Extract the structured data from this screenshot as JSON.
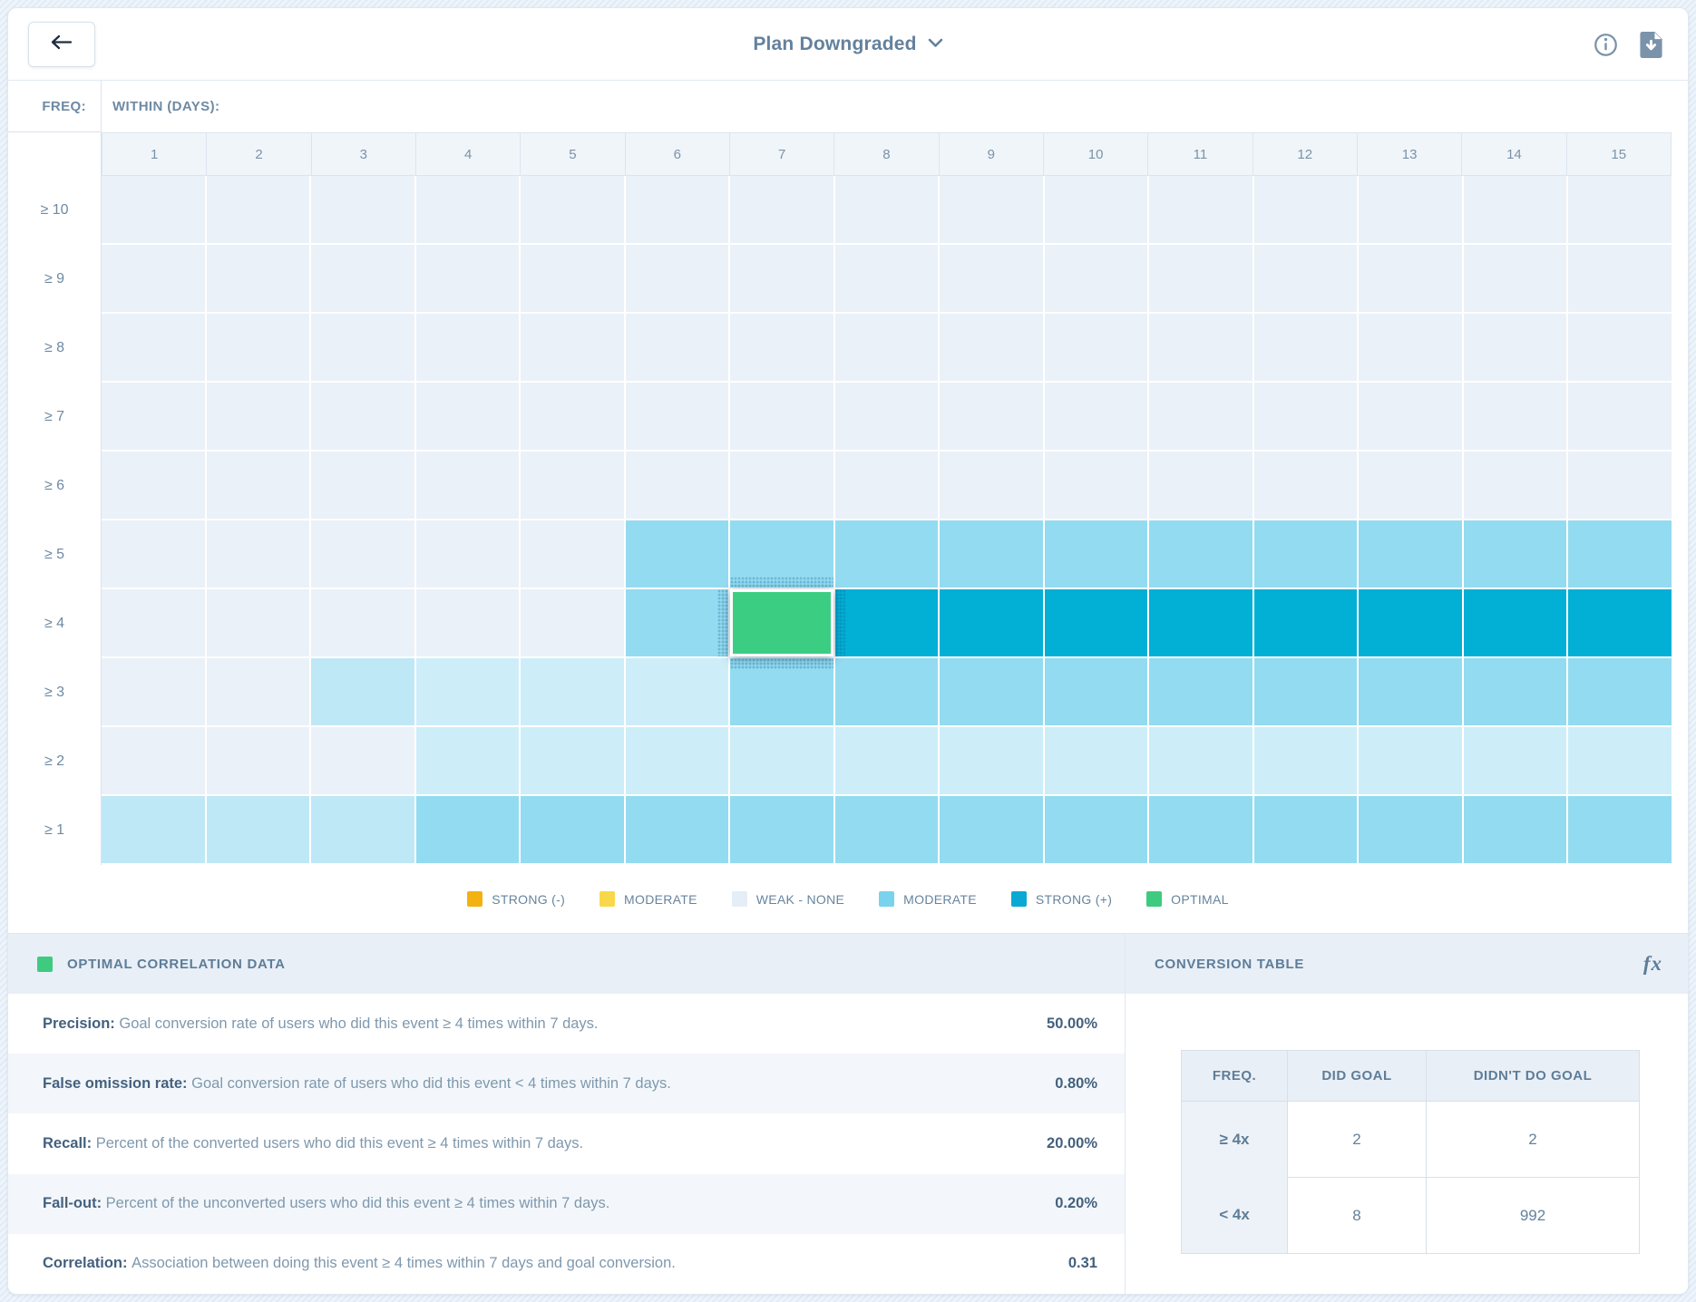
{
  "toolbar": {
    "title": "Plan Downgraded"
  },
  "axes": {
    "freq": "FREQ:",
    "within": "WITHIN (DAYS):"
  },
  "chart_data": {
    "type": "heatmap",
    "x_label": "WITHIN (DAYS):",
    "y_label": "FREQ:",
    "x_categories": [
      "1",
      "2",
      "3",
      "4",
      "5",
      "6",
      "7",
      "8",
      "9",
      "10",
      "11",
      "12",
      "13",
      "14",
      "15"
    ],
    "y_categories": [
      "≥ 10",
      "≥ 9",
      "≥ 8",
      "≥ 7",
      "≥ 6",
      "≥ 5",
      "≥ 4",
      "≥ 3",
      "≥ 2",
      "≥ 1"
    ],
    "levels": {
      "0": "weak-none",
      "1": "weak-light-cyan",
      "2": "weak-medium-cyan",
      "3": "moderate",
      "4": "strong-positive",
      "5": "optimal"
    },
    "palette": {
      "0": "#ebf1f8",
      "1": "#cdeef9",
      "2": "#bfe8f6",
      "3": "#93dbf0",
      "4": "#02afd5",
      "5": "#3bce83"
    },
    "cells": [
      [
        0,
        0,
        0,
        0,
        0,
        0,
        0,
        0,
        0,
        0,
        0,
        0,
        0,
        0,
        0
      ],
      [
        0,
        0,
        0,
        0,
        0,
        0,
        0,
        0,
        0,
        0,
        0,
        0,
        0,
        0,
        0
      ],
      [
        0,
        0,
        0,
        0,
        0,
        0,
        0,
        0,
        0,
        0,
        0,
        0,
        0,
        0,
        0
      ],
      [
        0,
        0,
        0,
        0,
        0,
        0,
        0,
        0,
        0,
        0,
        0,
        0,
        0,
        0,
        0
      ],
      [
        0,
        0,
        0,
        0,
        0,
        0,
        0,
        0,
        0,
        0,
        0,
        0,
        0,
        0,
        0
      ],
      [
        0,
        0,
        0,
        0,
        0,
        3,
        3,
        3,
        3,
        3,
        3,
        3,
        3,
        3,
        3
      ],
      [
        0,
        0,
        0,
        0,
        0,
        3,
        5,
        4,
        4,
        4,
        4,
        4,
        4,
        4,
        4
      ],
      [
        0,
        0,
        2,
        1,
        1,
        1,
        3,
        3,
        3,
        3,
        3,
        3,
        3,
        3,
        3
      ],
      [
        0,
        0,
        0,
        1,
        1,
        1,
        1,
        1,
        1,
        1,
        1,
        1,
        1,
        1,
        1
      ],
      [
        2,
        2,
        2,
        3,
        3,
        3,
        3,
        3,
        3,
        3,
        3,
        3,
        3,
        3,
        3
      ]
    ],
    "selected": {
      "row": "≥ 4",
      "col": "7",
      "row_index": 6,
      "col_index": 6
    }
  },
  "legend": {
    "items": [
      {
        "label": "STRONG (-)",
        "color": "#f2b211",
        "hatch": false
      },
      {
        "label": "MODERATE",
        "color": "#f8d84b",
        "hatch": false
      },
      {
        "label": "WEAK - NONE",
        "color": "#e5eef7",
        "hatch": false
      },
      {
        "label": "MODERATE",
        "color": "#79d3ec",
        "hatch": true
      },
      {
        "label": "STRONG (+)",
        "color": "#09a9d4",
        "hatch": false
      },
      {
        "label": "OPTIMAL",
        "color": "#3ecb80",
        "hatch": false
      }
    ]
  },
  "optimal_panel": {
    "title": "OPTIMAL CORRELATION DATA",
    "accent_color": "#3ecb80",
    "rows": [
      {
        "label": "Precision:",
        "desc": "Goal conversion rate of users who did this event ≥ 4 times within 7 days.",
        "value": "50.00%"
      },
      {
        "label": "False omission rate:",
        "desc": "Goal conversion rate of users who did this event < 4 times within 7 days.",
        "value": "0.80%"
      },
      {
        "label": "Recall:",
        "desc": "Percent of the converted users who did this event ≥ 4 times within 7 days.",
        "value": "20.00%"
      },
      {
        "label": "Fall-out:",
        "desc": "Percent of the unconverted users who did this event ≥ 4 times within 7 days.",
        "value": "0.20%"
      },
      {
        "label": "Correlation:",
        "desc": "Association between doing this event ≥ 4 times within 7 days and goal conversion.",
        "value": "0.31"
      }
    ]
  },
  "conversion_panel": {
    "title": "CONVERSION TABLE",
    "fx_label": "fx",
    "headers": [
      "FREQ.",
      "DID GOAL",
      "DIDN'T DO GOAL"
    ],
    "rows": [
      {
        "freq": "≥ 4x",
        "did": "2",
        "didnt": "2"
      },
      {
        "freq": "< 4x",
        "did": "8",
        "didnt": "992"
      }
    ]
  }
}
